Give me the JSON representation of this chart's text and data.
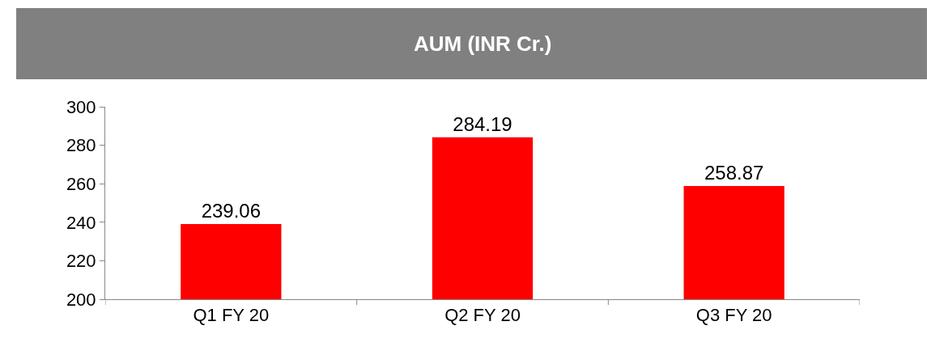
{
  "chart_data": {
    "type": "bar",
    "title": "AUM (INR Cr.)",
    "categories": [
      "Q1 FY 20",
      "Q2 FY 20",
      "Q3 FY 20"
    ],
    "values": [
      239.06,
      284.19,
      258.87
    ],
    "color": "#ff0000",
    "ylim": [
      200,
      300
    ],
    "yticks": [
      200,
      220,
      240,
      260,
      280,
      300
    ],
    "data_labels": true
  }
}
